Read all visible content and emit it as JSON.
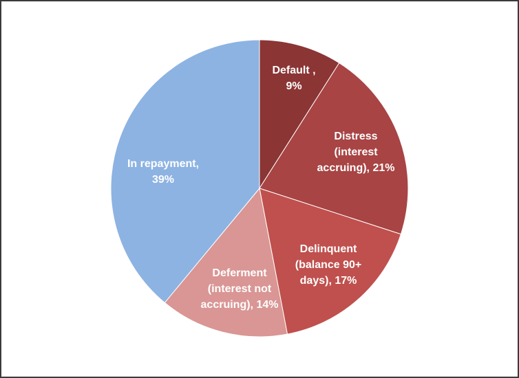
{
  "chart_data": {
    "type": "pie",
    "title": "",
    "start": "top",
    "direction": "clockwise",
    "legend": "none",
    "slices": [
      {
        "label_lines": [
          "Default ,",
          "9%"
        ],
        "value": 9,
        "color": "#8B3535"
      },
      {
        "label_lines": [
          "Distress",
          "(interest",
          "accruing), 21%"
        ],
        "value": 21,
        "color": "#A84444"
      },
      {
        "label_lines": [
          "Delinquent",
          "(balance 90+",
          "days), 17%"
        ],
        "value": 17,
        "color": "#C0504D"
      },
      {
        "label_lines": [
          "Deferment",
          "(interest not",
          "accruing), 14%"
        ],
        "value": 14,
        "color": "#D99694"
      },
      {
        "label_lines": [
          "In repayment,",
          "39%"
        ],
        "value": 39,
        "color": "#8DB3E2"
      }
    ]
  }
}
